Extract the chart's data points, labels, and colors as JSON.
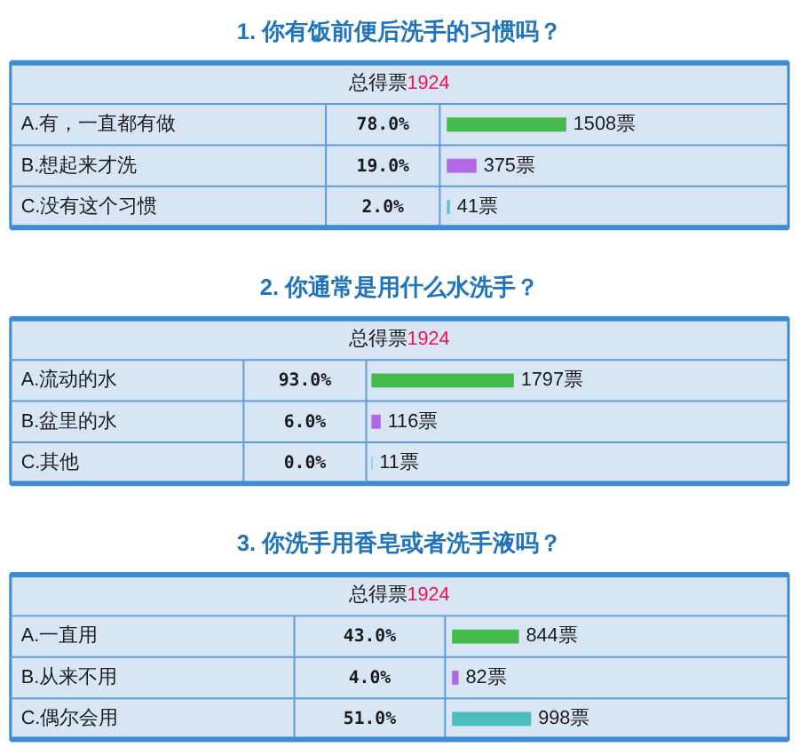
{
  "chart_data": [
    {
      "type": "bar",
      "orientation": "horizontal",
      "title": "1. 你有饭前便后洗手的习惯吗？",
      "subtitle": "总得票1924",
      "categories": [
        "A.有，一直都有做",
        "B.想起来才洗",
        "C.没有这个习惯"
      ],
      "values": [
        1508,
        375,
        41
      ],
      "colors": [
        "#44b94c",
        "#b366e8",
        "#5cc8d8"
      ],
      "value_labels": [
        "1508票",
        "375票",
        "41票"
      ],
      "annotations": [
        "78.0%",
        "19.0%",
        "2.0%"
      ]
    },
    {
      "type": "bar",
      "orientation": "horizontal",
      "title": "2. 你通常是用什么水洗手？",
      "subtitle": "总得票1924",
      "categories": [
        "A.流动的水",
        "B.盆里的水",
        "C.其他"
      ],
      "values": [
        1797,
        116,
        11
      ],
      "colors": [
        "#44b94c",
        "#b366e8",
        "#5cc8d8"
      ],
      "value_labels": [
        "1797票",
        "116票",
        "11票"
      ],
      "annotations": [
        "93.0%",
        "6.0%",
        "0.0%"
      ]
    },
    {
      "type": "bar",
      "orientation": "horizontal",
      "title": "3. 你洗手用香皂或者洗手液吗？",
      "subtitle": "总得票1924",
      "categories": [
        "A.一直用",
        "B.从来不用",
        "C.偶尔会用"
      ],
      "values": [
        844,
        82,
        998
      ],
      "colors": [
        "#44b94c",
        "#b366e8",
        "#4fbcbc"
      ],
      "value_labels": [
        "844票",
        "82票",
        "998票"
      ],
      "annotations": [
        "43.0%",
        "4.0%",
        "51.0%"
      ]
    }
  ]
}
